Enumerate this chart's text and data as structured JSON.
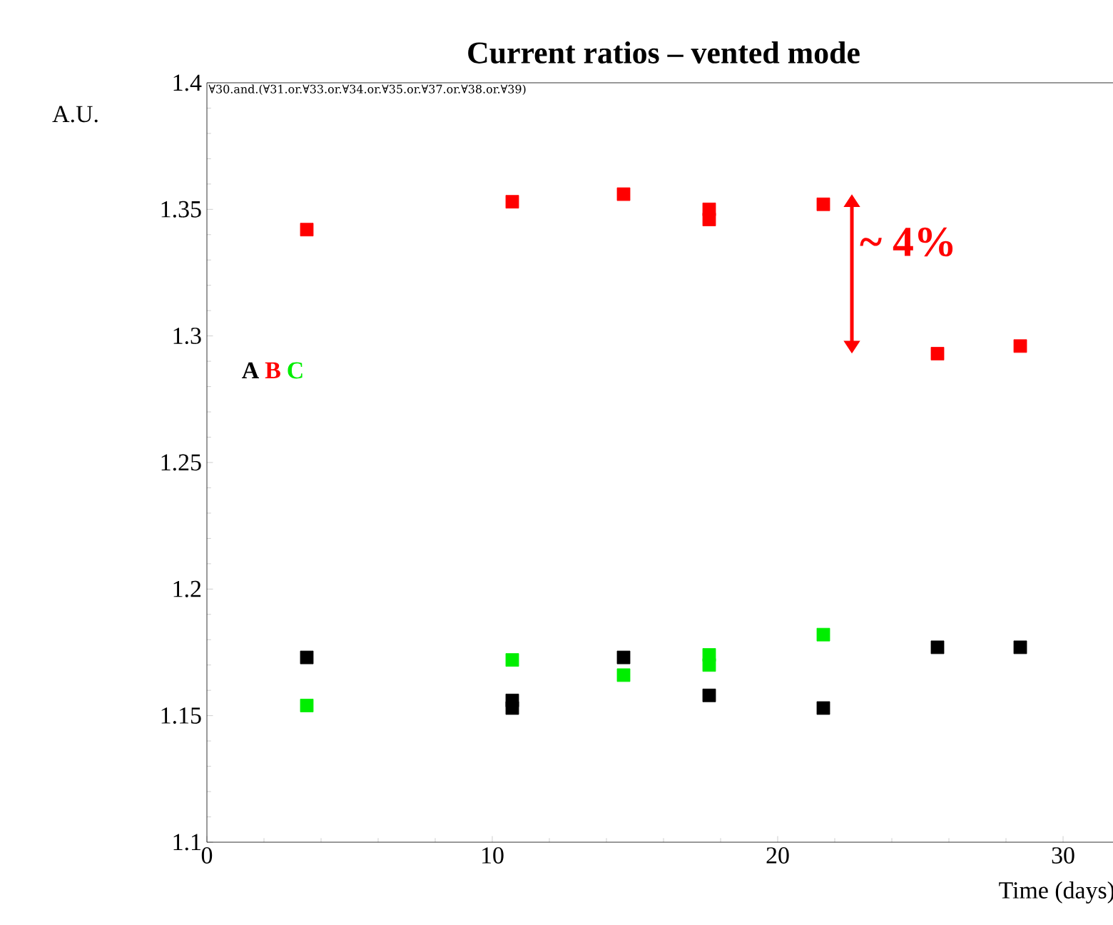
{
  "chart_data": {
    "type": "scatter",
    "title": "Current ratios – vented mode",
    "xlabel": "Time (days)",
    "ylabel": "A.U.",
    "annotations": [
      "∀30.and.(∀31.or.∀33.or.∀34.or.∀35.or.∀37.or.∀38.or.∀39)",
      "~ 4%"
    ],
    "series": [
      {
        "name": "A",
        "color": "#000000",
        "x": [
          3.5,
          10.7,
          10.7,
          14.6,
          17.6,
          21.6,
          25.6,
          28.5
        ],
        "values": [
          1.173,
          1.156,
          1.153,
          1.173,
          1.158,
          1.153,
          1.177,
          1.177
        ]
      },
      {
        "name": "B",
        "color": "#ff0000",
        "x": [
          3.5,
          10.7,
          14.6,
          17.6,
          17.6,
          21.6,
          25.6,
          28.5
        ],
        "values": [
          1.342,
          1.353,
          1.356,
          1.35,
          1.346,
          1.352,
          1.293,
          1.296
        ]
      },
      {
        "name": "C",
        "color": "#00ee00",
        "x": [
          3.5,
          10.7,
          14.6,
          17.6,
          17.6,
          21.6
        ],
        "values": [
          1.154,
          1.172,
          1.166,
          1.174,
          1.17,
          1.182
        ]
      }
    ],
    "xlim": [
      0,
      32
    ],
    "xticks": [
      0,
      10,
      20,
      30
    ],
    "ylim": [
      1.1,
      1.4
    ],
    "yticks": [
      1.1,
      1.15,
      1.2,
      1.25,
      1.3,
      1.35,
      1.4
    ],
    "legend": "left",
    "marker": "square",
    "grid": false
  }
}
